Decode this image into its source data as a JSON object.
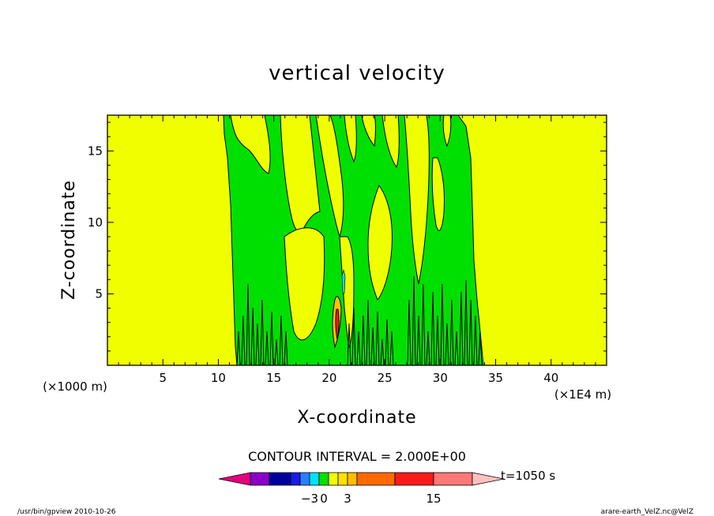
{
  "chart_data": {
    "type": "heatmap",
    "title": "vertical velocity",
    "xlabel": "X-coordinate",
    "ylabel": "Z-coordinate",
    "x_unit_left": "(×1000 m)",
    "x_unit_right": "(×1E4 m)",
    "xlim": [
      0,
      45
    ],
    "ylim": [
      0,
      17.5
    ],
    "x_ticks": [
      5,
      10,
      15,
      20,
      25,
      30,
      35,
      40
    ],
    "y_ticks": [
      5,
      10,
      15
    ],
    "contour_interval": "CONTOUR INTERVAL = 2.000E+00",
    "time_label": "t=1050 s",
    "colorbar": {
      "levels": [
        -11,
        -9,
        -7,
        -5,
        -3,
        -1,
        1,
        3,
        5,
        7,
        9,
        11,
        13,
        15
      ],
      "tick_labels": [
        "−3",
        "0",
        "3",
        "15"
      ],
      "colors": [
        "#e6007e",
        "#8a00c8",
        "#0000a0",
        "#1a1ae6",
        "#2a7fff",
        "#00e0ff",
        "#00e000",
        "#f0ff00",
        "#ffe000",
        "#ffc000",
        "#ff6a00",
        "#ff1a1a",
        "#ff7878",
        "#ffc0c0"
      ]
    },
    "background_color": "#f0ff00",
    "updraft_band": {
      "x_range": [
        11,
        34
      ],
      "z_range": [
        0,
        17.5
      ],
      "color": "#00e000"
    }
  },
  "footer": {
    "left": "/usr/bin/gpview   2010-10-26",
    "right": "arare-earth_VelZ.nc@VelZ"
  }
}
